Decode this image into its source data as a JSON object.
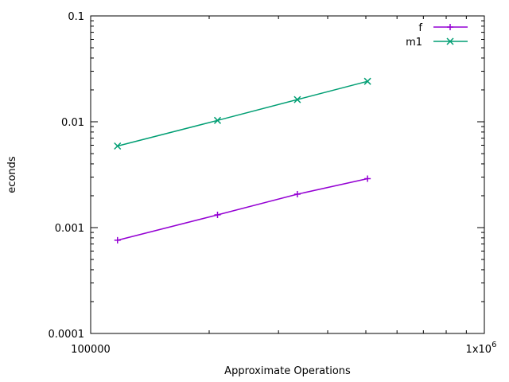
{
  "chart_data": {
    "type": "line",
    "xlabel": "Approximate Operations",
    "ylabel": "econds",
    "xscale": "log",
    "yscale": "log",
    "xlim": [
      100000,
      1000000
    ],
    "ylim": [
      0.0001,
      0.1
    ],
    "grid": false,
    "legend_position": "top-right",
    "x_ticks": [
      {
        "value": 100000,
        "label": "100000"
      },
      {
        "value": 1000000,
        "label": "1x10",
        "sup": "6"
      }
    ],
    "y_ticks": [
      {
        "value": 0.0001,
        "label": "0.0001"
      },
      {
        "value": 0.001,
        "label": "0.001"
      },
      {
        "value": 0.01,
        "label": "0.01"
      },
      {
        "value": 0.1,
        "label": "0.1"
      }
    ],
    "series": [
      {
        "name": "f",
        "color": "#9400d3",
        "marker": "plus",
        "points": [
          [
            117000,
            0.00076
          ],
          [
            210000,
            0.00132
          ],
          [
            335000,
            0.00207
          ],
          [
            505000,
            0.0029
          ]
        ]
      },
      {
        "name": "m1",
        "color": "#009e73",
        "marker": "cross",
        "points": [
          [
            117000,
            0.0059
          ],
          [
            210000,
            0.0103
          ],
          [
            335000,
            0.0162
          ],
          [
            505000,
            0.0241
          ]
        ]
      }
    ]
  }
}
